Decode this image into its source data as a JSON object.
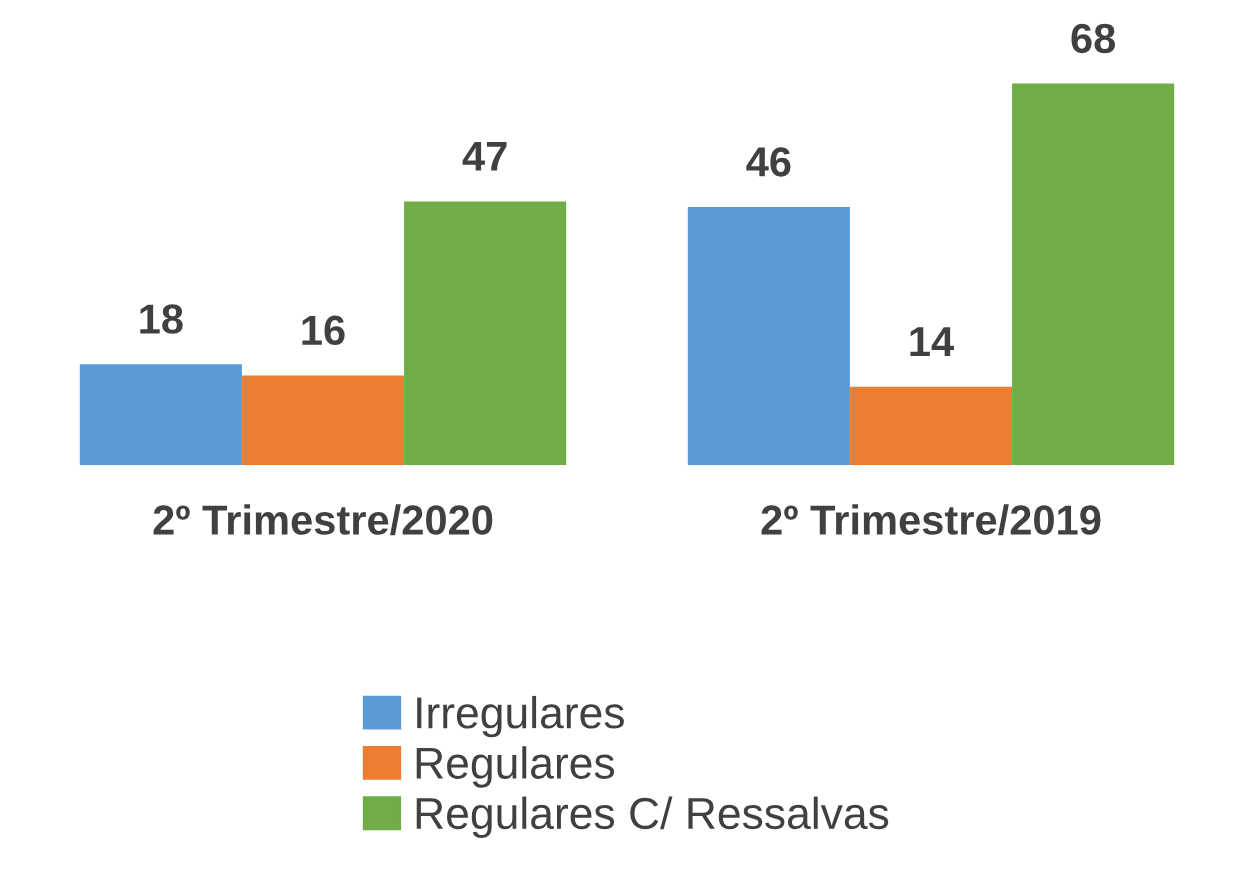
{
  "chart_data": {
    "type": "bar",
    "categories": [
      "2º Trimestre/2020",
      "2º Trimestre/2019"
    ],
    "series": [
      {
        "name": "Irregulares",
        "color": "#5b9bd5",
        "values": [
          18,
          46
        ]
      },
      {
        "name": "Regulares",
        "color": "#ed7d31",
        "values": [
          16,
          14
        ]
      },
      {
        "name": "Regulares C/ Ressalvas",
        "color": "#70ad47",
        "values": [
          47,
          68
        ]
      }
    ],
    "data_labels": true,
    "legend": "bottom",
    "grid": false
  }
}
